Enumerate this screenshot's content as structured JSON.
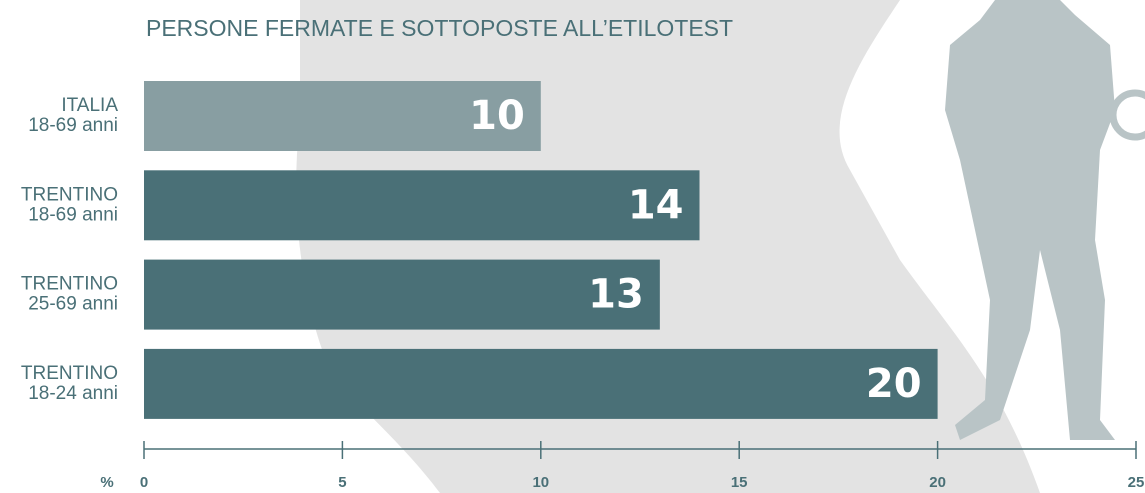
{
  "chart_data": {
    "type": "bar",
    "orientation": "horizontal",
    "title": "PERSONE FERMATE E SOTTOPOSTE ALL’ETILOTEST",
    "categories": [
      [
        "ITALIA",
        "18-69 anni"
      ],
      [
        "TRENTINO",
        "18-69 anni"
      ],
      [
        "TRENTINO",
        "25-69 anni"
      ],
      [
        "TRENTINO",
        "18-24 anni"
      ]
    ],
    "values": [
      10,
      14,
      13,
      20
    ],
    "colors": [
      "#889ea2",
      "#4a7077",
      "#4a7077",
      "#4a7077"
    ],
    "xlabel": "%",
    "xlim": [
      0,
      25
    ],
    "xticks": [
      0,
      5,
      10,
      15,
      20,
      25
    ]
  }
}
